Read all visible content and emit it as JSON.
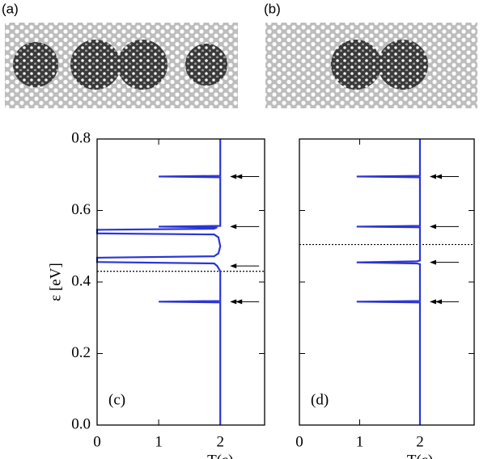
{
  "images": [
    {
      "label": "(a)"
    },
    {
      "label": "(b)"
    }
  ],
  "chart_data": [
    {
      "type": "line",
      "label": "(c)",
      "xlabel": "T(ε)",
      "ylabel": "ε [eV]",
      "xlim": [
        0,
        2.72
      ],
      "ylim": [
        0,
        0.8
      ],
      "xticks": [
        0,
        1,
        2
      ],
      "yticks": [
        {
          "value": 0,
          "label": "0.0"
        },
        0.2,
        0.4,
        0.6,
        0.8
      ],
      "show_ytick_labels": true,
      "hline": 0.43,
      "arrows": [
        {
          "y": 0.695,
          "double": true
        },
        {
          "y": 0.555,
          "double": false
        },
        {
          "y": 0.445,
          "double": false
        },
        {
          "y": 0.345,
          "double": true
        }
      ],
      "series": [
        {
          "color": "#2b35d6",
          "x": [
            2,
            2,
            1,
            2,
            2,
            1.95,
            1.9,
            0,
            0,
            1.9,
            1.97,
            2,
            1.97,
            1.9,
            0,
            0,
            1.9,
            1.95,
            1,
            2,
            2,
            1,
            2,
            2
          ],
          "values": [
            0,
            0.343,
            0.345,
            0.347,
            0.43,
            0.445,
            0.452,
            0.456,
            0.468,
            0.472,
            0.48,
            0.5,
            0.525,
            0.533,
            0.536,
            0.546,
            0.549,
            0.553,
            0.555,
            0.557,
            0.693,
            0.695,
            0.697,
            0.8
          ]
        }
      ]
    },
    {
      "type": "line",
      "label": "(d)",
      "xlabel": "T(ε)",
      "xlim": [
        0,
        2.9
      ],
      "ylim": [
        0,
        0.8
      ],
      "xticks": [
        0,
        1,
        2
      ],
      "yticks": [
        {
          "value": 0,
          "label": "0.0"
        },
        0.2,
        0.4,
        0.6,
        0.8
      ],
      "show_ytick_labels": false,
      "hline": 0.505,
      "arrows": [
        {
          "y": 0.695,
          "double": true
        },
        {
          "y": 0.555,
          "double": false
        },
        {
          "y": 0.455,
          "double": false
        },
        {
          "y": 0.345,
          "double": true
        }
      ],
      "series": [
        {
          "color": "#2b35d6",
          "x": [
            2,
            2,
            0.95,
            2,
            2,
            1.95,
            0.95,
            1.95,
            2,
            2,
            0.95,
            2,
            2,
            0.95,
            2,
            2
          ],
          "values": [
            0,
            0.343,
            0.345,
            0.347,
            0.45,
            0.452,
            0.455,
            0.458,
            0.46,
            0.553,
            0.555,
            0.557,
            0.693,
            0.695,
            0.697,
            0.8
          ]
        }
      ]
    }
  ]
}
